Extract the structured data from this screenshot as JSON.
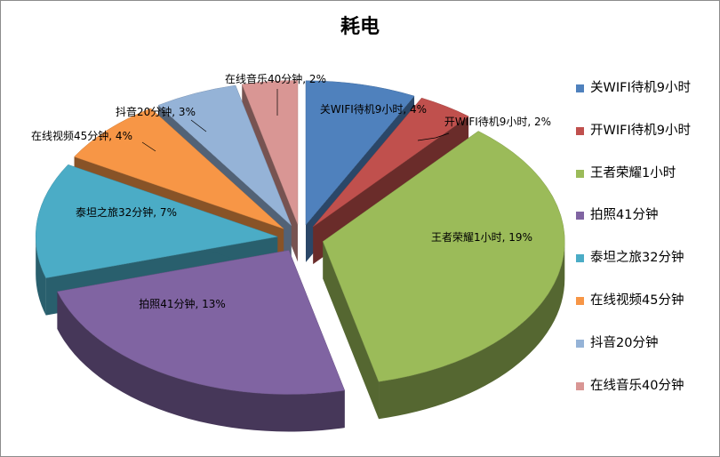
{
  "chart_data": {
    "type": "pie",
    "title": "耗电",
    "categories": [
      "关WIFI待机9小时",
      "开WIFI待机9小时",
      "王者荣耀1小时",
      "拍照41分钟",
      "泰坦之旅32分钟",
      "在线视频45分钟",
      "抖音20分钟",
      "在线音乐40分钟"
    ],
    "values": [
      4,
      2,
      19,
      13,
      7,
      4,
      3,
      2
    ],
    "unit": "%",
    "data_labels": [
      "关WIFI待机9小时, 4%",
      "开WIFI待机9小时, 2%",
      "王者荣耀1小时, 19%",
      "拍照41分钟, 13%",
      "泰坦之旅32分钟, 7%",
      "在线视频45分钟, 4%",
      "抖音20分钟, 3%",
      "在线音乐40分钟, 2%"
    ],
    "colors": [
      "#4f81bd",
      "#c0504d",
      "#9bbb59",
      "#8064a2",
      "#4bacc6",
      "#f79646",
      "#95b3d7",
      "#d99694"
    ],
    "style": "3d-exploded",
    "legend_position": "right"
  }
}
